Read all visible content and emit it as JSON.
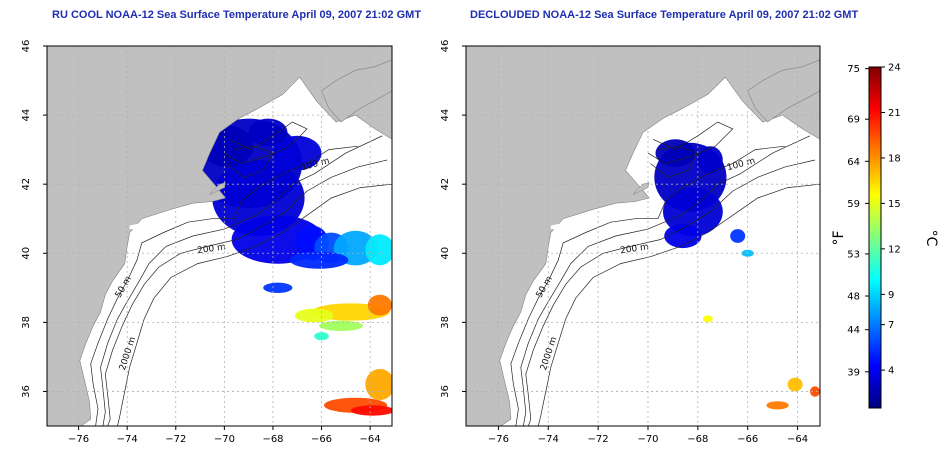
{
  "panels": [
    {
      "id": "left",
      "title": "RU COOL NOAA-12 Sea Surface Temperature April 09, 2007 21:02 GMT"
    },
    {
      "id": "right",
      "title": "DECLOUDED NOAA-12 Sea Surface Temperature April 09, 2007 21:02 GMT"
    }
  ],
  "axes": {
    "lon_ticks": [
      -76,
      -74,
      -72,
      -70,
      -68,
      -66,
      -64
    ],
    "lat_ticks": [
      36,
      38,
      40,
      42,
      44,
      46
    ],
    "lon_range": [
      -77.3,
      -63.1
    ],
    "lat_range": [
      35,
      46
    ]
  },
  "contour_labels": [
    "100 m",
    "200 m",
    "50 m",
    "2000 m"
  ],
  "colorbar": {
    "fahrenheit_label": "°F",
    "celsius_label": "°C",
    "fahrenheit_ticks": [
      "75",
      "69",
      "64",
      "59",
      "53",
      "48",
      "44",
      "39"
    ],
    "celsius_ticks": [
      "24",
      "21",
      "18",
      "15",
      "12",
      "9",
      "7",
      "4"
    ],
    "celsius_range": [
      1.5,
      24
    ],
    "fahrenheit_values": [
      75,
      69,
      64,
      59,
      53,
      48,
      44,
      39
    ],
    "celsius_values": [
      24,
      21,
      18,
      15,
      12,
      9,
      7,
      4
    ],
    "gradient": [
      "#000080",
      "#0000ff",
      "#0080ff",
      "#00ffff",
      "#80ff80",
      "#ffff00",
      "#ff8000",
      "#ff0000",
      "#800000"
    ]
  },
  "colors": {
    "land": "#c0c0c0",
    "water": "#ffffff",
    "title": "#1f2fb0",
    "grid": "#b0b0b0"
  }
}
